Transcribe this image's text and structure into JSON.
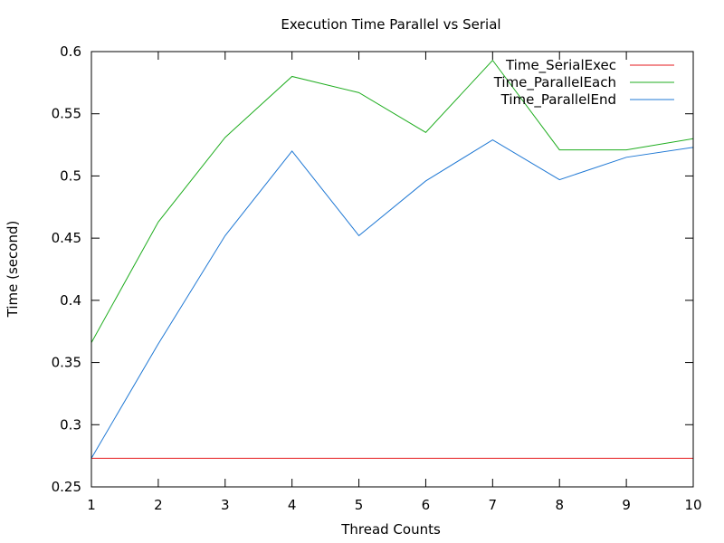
{
  "chart_data": {
    "type": "line",
    "title": "Execution Time Parallel vs Serial",
    "xlabel": "Thread Counts",
    "ylabel": "Time (second)",
    "xlim": [
      1,
      10
    ],
    "ylim": [
      0.25,
      0.6
    ],
    "xticks": [
      1,
      2,
      3,
      4,
      5,
      6,
      7,
      8,
      9,
      10
    ],
    "yticks": [
      0.25,
      0.3,
      0.35,
      0.4,
      0.45,
      0.5,
      0.55,
      0.6
    ],
    "grid": false,
    "legend_position": "top-right",
    "x": [
      1,
      2,
      3,
      4,
      5,
      6,
      7,
      8,
      9,
      10
    ],
    "series": [
      {
        "name": "Time_SerialExec",
        "color": "#e41a1c",
        "values": [
          0.273,
          0.273,
          0.273,
          0.273,
          0.273,
          0.273,
          0.273,
          0.273,
          0.273,
          0.273
        ]
      },
      {
        "name": "Time_ParallelEach",
        "color": "#1fad1f",
        "values": [
          0.366,
          0.463,
          0.531,
          0.58,
          0.567,
          0.535,
          0.593,
          0.521,
          0.521,
          0.53
        ]
      },
      {
        "name": "Time_ParallelEnd",
        "color": "#1f78d4",
        "values": [
          0.273,
          0.365,
          0.452,
          0.52,
          0.452,
          0.496,
          0.529,
          0.497,
          0.515,
          0.523
        ]
      }
    ]
  }
}
